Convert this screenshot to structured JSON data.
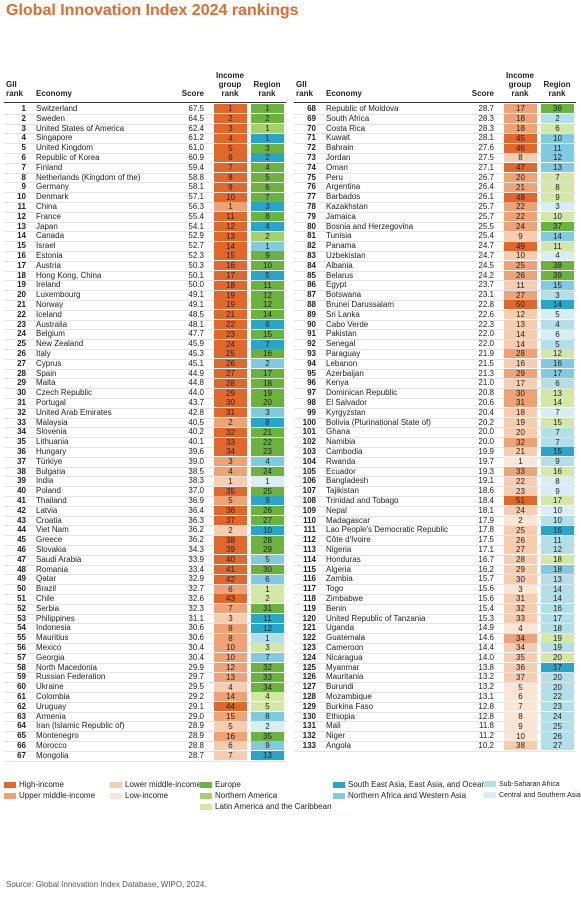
{
  "title": "Global Innovation Index 2024 rankings",
  "headers": [
    "GII rank",
    "Economy",
    "Score",
    "Income group rank",
    "Region rank"
  ],
  "income_groups": [
    {
      "name": "High-income",
      "color": "#e2672b"
    },
    {
      "name": "Upper middle-income",
      "color": "#eea275"
    },
    {
      "name": "Lower middle-income",
      "color": "#f7cdb0"
    },
    {
      "name": "Low-income",
      "color": "#fbe5d5"
    }
  ],
  "regions": [
    {
      "name": "Europe",
      "color": "#6bb23f"
    },
    {
      "name": "Northern America",
      "color": "#a6d06b"
    },
    {
      "name": "Latin America and the Caribbean",
      "color": "#d3e7a6"
    },
    {
      "name": "South East Asia, East Asia, and Oceania",
      "color": "#2aa5ca"
    },
    {
      "name": "Northern Africa and Western Asia",
      "color": "#80cbe0"
    },
    {
      "name": "Sub-Saharan Africa",
      "color": "#b5dfe8"
    },
    {
      "name": "Central and Southern Asia",
      "color": "#d8eef4"
    }
  ],
  "rows": [
    [
      1,
      "Switzerland",
      "67.5",
      1,
      1,
      "High-income",
      "Europe"
    ],
    [
      2,
      "Sweden",
      "64.5",
      2,
      2,
      "High-income",
      "Europe"
    ],
    [
      3,
      "United States of America",
      "62.4",
      3,
      1,
      "High-income",
      "Northern America"
    ],
    [
      4,
      "Singapore",
      "61.2",
      4,
      1,
      "High-income",
      "South East Asia, East Asia, and Oceania"
    ],
    [
      5,
      "United Kingdom",
      "61.0",
      5,
      3,
      "High-income",
      "Europe"
    ],
    [
      6,
      "Republic of Korea",
      "60.9",
      6,
      2,
      "High-income",
      "South East Asia, East Asia, and Oceania"
    ],
    [
      7,
      "Finland",
      "59.4",
      7,
      4,
      "High-income",
      "Europe"
    ],
    [
      8,
      "Netherlands (Kingdom of the)",
      "58.8",
      8,
      5,
      "High-income",
      "Europe"
    ],
    [
      9,
      "Germany",
      "58.1",
      9,
      6,
      "High-income",
      "Europe"
    ],
    [
      10,
      "Denmark",
      "57.1",
      10,
      7,
      "High-income",
      "Europe"
    ],
    [
      11,
      "China",
      "56.3",
      1,
      3,
      "Upper middle-income",
      "South East Asia, East Asia, and Oceania"
    ],
    [
      12,
      "France",
      "55.4",
      11,
      8,
      "High-income",
      "Europe"
    ],
    [
      13,
      "Japan",
      "54.1",
      12,
      4,
      "High-income",
      "South East Asia, East Asia, and Oceania"
    ],
    [
      14,
      "Canada",
      "52.9",
      13,
      2,
      "High-income",
      "Northern America"
    ],
    [
      15,
      "Israel",
      "52.7",
      14,
      1,
      "High-income",
      "Northern Africa and Western Asia"
    ],
    [
      16,
      "Estonia",
      "52.3",
      15,
      9,
      "High-income",
      "Europe"
    ],
    [
      17,
      "Austria",
      "50.3",
      16,
      10,
      "High-income",
      "Europe"
    ],
    [
      18,
      "Hong Kong, China",
      "50.1",
      17,
      5,
      "High-income",
      "South East Asia, East Asia, and Oceania"
    ],
    [
      19,
      "Ireland",
      "50.0",
      18,
      11,
      "High-income",
      "Europe"
    ],
    [
      20,
      "Luxembourg",
      "49.1",
      19,
      12,
      "High-income",
      "Europe"
    ],
    [
      21,
      "Norway",
      "49.1",
      19,
      12,
      "High-income",
      "Europe"
    ],
    [
      22,
      "Iceland",
      "48.5",
      21,
      14,
      "High-income",
      "Europe"
    ],
    [
      23,
      "Australia",
      "48.1",
      22,
      6,
      "High-income",
      "South East Asia, East Asia, and Oceania"
    ],
    [
      24,
      "Belgium",
      "47.7",
      23,
      15,
      "High-income",
      "Europe"
    ],
    [
      25,
      "New Zealand",
      "45.9",
      24,
      7,
      "High-income",
      "South East Asia, East Asia, and Oceania"
    ],
    [
      26,
      "Italy",
      "45.3",
      25,
      16,
      "High-income",
      "Europe"
    ],
    [
      27,
      "Cyprus",
      "45.1",
      26,
      2,
      "High-income",
      "Northern Africa and Western Asia"
    ],
    [
      28,
      "Spain",
      "44.9",
      27,
      17,
      "High-income",
      "Europe"
    ],
    [
      29,
      "Malta",
      "44.8",
      28,
      18,
      "High-income",
      "Europe"
    ],
    [
      30,
      "Czech Republic",
      "44.0",
      29,
      19,
      "High-income",
      "Europe"
    ],
    [
      31,
      "Portugal",
      "43.7",
      30,
      20,
      "High-income",
      "Europe"
    ],
    [
      32,
      "United Arab Emirates",
      "42.8",
      31,
      3,
      "High-income",
      "Northern Africa and Western Asia"
    ],
    [
      33,
      "Malaysia",
      "40.5",
      2,
      8,
      "Upper middle-income",
      "South East Asia, East Asia, and Oceania"
    ],
    [
      34,
      "Slovenia",
      "40.2",
      32,
      21,
      "High-income",
      "Europe"
    ],
    [
      35,
      "Lithuania",
      "40.1",
      33,
      22,
      "High-income",
      "Europe"
    ],
    [
      36,
      "Hungary",
      "39.6",
      34,
      23,
      "High-income",
      "Europe"
    ],
    [
      37,
      "Türkiye",
      "39.0",
      3,
      4,
      "Upper middle-income",
      "Northern Africa and Western Asia"
    ],
    [
      38,
      "Bulgaria",
      "38.5",
      4,
      24,
      "Upper middle-income",
      "Europe"
    ],
    [
      39,
      "India",
      "38.3",
      1,
      1,
      "Lower middle-income",
      "Central and Southern Asia"
    ],
    [
      40,
      "Poland",
      "37.0",
      35,
      25,
      "High-income",
      "Europe"
    ],
    [
      41,
      "Thailand",
      "36.9",
      5,
      9,
      "Upper middle-income",
      "South East Asia, East Asia, and Oceania"
    ],
    [
      42,
      "Latvia",
      "36.4",
      36,
      26,
      "High-income",
      "Europe"
    ],
    [
      43,
      "Croatia",
      "36.3",
      37,
      27,
      "High-income",
      "Europe"
    ],
    [
      44,
      "Viet Nam",
      "36.2",
      2,
      10,
      "Lower middle-income",
      "South East Asia, East Asia, and Oceania"
    ],
    [
      45,
      "Greece",
      "36.2",
      38,
      28,
      "High-income",
      "Europe"
    ],
    [
      46,
      "Slovakia",
      "34.3",
      39,
      29,
      "High-income",
      "Europe"
    ],
    [
      47,
      "Saudi Arabia",
      "33.9",
      40,
      5,
      "High-income",
      "Northern Africa and Western Asia"
    ],
    [
      48,
      "Romania",
      "33.4",
      41,
      30,
      "High-income",
      "Europe"
    ],
    [
      49,
      "Qatar",
      "32.9",
      42,
      6,
      "High-income",
      "Northern Africa and Western Asia"
    ],
    [
      50,
      "Brazil",
      "32.7",
      6,
      1,
      "Upper middle-income",
      "Latin America and the Caribbean"
    ],
    [
      51,
      "Chile",
      "32.6",
      43,
      2,
      "High-income",
      "Latin America and the Caribbean"
    ],
    [
      52,
      "Serbia",
      "32.3",
      7,
      31,
      "Upper middle-income",
      "Europe"
    ],
    [
      53,
      "Philippines",
      "31.1",
      3,
      11,
      "Lower middle-income",
      "South East Asia, East Asia, and Oceania"
    ],
    [
      54,
      "Indonesia",
      "30.6",
      8,
      12,
      "Upper middle-income",
      "South East Asia, East Asia, and Oceania"
    ],
    [
      55,
      "Mauritius",
      "30.6",
      8,
      1,
      "Upper middle-income",
      "Sub-Saharan Africa"
    ],
    [
      56,
      "Mexico",
      "30.4",
      10,
      3,
      "Upper middle-income",
      "Latin America and the Caribbean"
    ],
    [
      57,
      "Georgia",
      "30.4",
      10,
      7,
      "Upper middle-income",
      "Northern Africa and Western Asia"
    ],
    [
      58,
      "North Macedonia",
      "29.9",
      12,
      32,
      "Upper middle-income",
      "Europe"
    ],
    [
      59,
      "Russian Federation",
      "29.7",
      13,
      33,
      "Upper middle-income",
      "Europe"
    ],
    [
      60,
      "Ukraine",
      "29.5",
      4,
      34,
      "Lower middle-income",
      "Europe"
    ],
    [
      61,
      "Colombia",
      "29.2",
      14,
      4,
      "Upper middle-income",
      "Latin America and the Caribbean"
    ],
    [
      62,
      "Uruguay",
      "29.1",
      44,
      5,
      "High-income",
      "Latin America and the Caribbean"
    ],
    [
      63,
      "Armenia",
      "29.0",
      15,
      8,
      "Upper middle-income",
      "Northern Africa and Western Asia"
    ],
    [
      64,
      "Iran (Islamic Republic of)",
      "28.9",
      5,
      2,
      "Lower middle-income",
      "Central and Southern Asia"
    ],
    [
      65,
      "Montenegro",
      "28.9",
      16,
      35,
      "Upper middle-income",
      "Europe"
    ],
    [
      66,
      "Morocco",
      "28.8",
      6,
      9,
      "Lower middle-income",
      "Northern Africa and Western Asia"
    ],
    [
      67,
      "Mongolia",
      "28.7",
      7,
      13,
      "Lower middle-income",
      "South East Asia, East Asia, and Oceania"
    ],
    [
      68,
      "Republic of Moldova",
      "28.7",
      17,
      36,
      "Upper middle-income",
      "Europe"
    ],
    [
      69,
      "South Africa",
      "28.3",
      18,
      2,
      "Upper middle-income",
      "Sub-Saharan Africa"
    ],
    [
      70,
      "Costa Rica",
      "28.3",
      18,
      6,
      "Upper middle-income",
      "Latin America and the Caribbean"
    ],
    [
      71,
      "Kuwait",
      "28.1",
      45,
      10,
      "High-income",
      "Northern Africa and Western Asia"
    ],
    [
      72,
      "Bahrain",
      "27.6",
      46,
      11,
      "High-income",
      "Northern Africa and Western Asia"
    ],
    [
      73,
      "Jordan",
      "27.5",
      8,
      12,
      "Lower middle-income",
      "Northern Africa and Western Asia"
    ],
    [
      74,
      "Oman",
      "27.1",
      47,
      13,
      "High-income",
      "Northern Africa and Western Asia"
    ],
    [
      75,
      "Peru",
      "26.7",
      20,
      7,
      "Upper middle-income",
      "Latin America and the Caribbean"
    ],
    [
      76,
      "Argentina",
      "26.4",
      21,
      8,
      "Upper middle-income",
      "Latin America and the Caribbean"
    ],
    [
      77,
      "Barbados",
      "26.1",
      48,
      9,
      "High-income",
      "Latin America and the Caribbean"
    ],
    [
      78,
      "Kazakhstan",
      "25.7",
      22,
      3,
      "Upper middle-income",
      "Central and Southern Asia"
    ],
    [
      79,
      "Jamaica",
      "25.7",
      22,
      10,
      "Upper middle-income",
      "Latin America and the Caribbean"
    ],
    [
      80,
      "Bosnia and Herzegovina",
      "25.5",
      24,
      37,
      "Upper middle-income",
      "Europe"
    ],
    [
      81,
      "Tunisia",
      "25.4",
      9,
      14,
      "Lower middle-income",
      "Northern Africa and Western Asia"
    ],
    [
      82,
      "Panama",
      "24.7",
      49,
      11,
      "High-income",
      "Latin America and the Caribbean"
    ],
    [
      83,
      "Uzbekistan",
      "24.7",
      10,
      4,
      "Lower middle-income",
      "Central and Southern Asia"
    ],
    [
      84,
      "Albania",
      "24.5",
      25,
      38,
      "Upper middle-income",
      "Europe"
    ],
    [
      85,
      "Belarus",
      "24.2",
      26,
      39,
      "Upper middle-income",
      "Europe"
    ],
    [
      86,
      "Egypt",
      "23.7",
      11,
      15,
      "Lower middle-income",
      "Northern Africa and Western Asia"
    ],
    [
      87,
      "Botswana",
      "23.1",
      27,
      3,
      "Upper middle-income",
      "Sub-Saharan Africa"
    ],
    [
      88,
      "Brunei Darussalam",
      "22.8",
      50,
      14,
      "High-income",
      "South East Asia, East Asia, and Oceania"
    ],
    [
      89,
      "Sri Lanka",
      "22.6",
      12,
      5,
      "Lower middle-income",
      "Central and Southern Asia"
    ],
    [
      90,
      "Cabo Verde",
      "22.3",
      13,
      4,
      "Lower middle-income",
      "Sub-Saharan Africa"
    ],
    [
      91,
      "Pakistan",
      "22.0",
      14,
      6,
      "Lower middle-income",
      "Central and Southern Asia"
    ],
    [
      92,
      "Senegal",
      "22.0",
      14,
      5,
      "Lower middle-income",
      "Sub-Saharan Africa"
    ],
    [
      93,
      "Paraguay",
      "21.9",
      28,
      12,
      "Upper middle-income",
      "Latin America and the Caribbean"
    ],
    [
      94,
      "Lebanon",
      "21.5",
      16,
      16,
      "Lower middle-income",
      "Northern Africa and Western Asia"
    ],
    [
      95,
      "Azerbaijan",
      "21.3",
      29,
      17,
      "Upper middle-income",
      "Northern Africa and Western Asia"
    ],
    [
      96,
      "Kenya",
      "21.0",
      17,
      6,
      "Lower middle-income",
      "Sub-Saharan Africa"
    ],
    [
      97,
      "Dominican Republic",
      "20.8",
      30,
      13,
      "Upper middle-income",
      "Latin America and the Caribbean"
    ],
    [
      98,
      "El Salvador",
      "20.6",
      31,
      14,
      "Upper middle-income",
      "Latin America and the Caribbean"
    ],
    [
      99,
      "Kyrgyzstan",
      "20.4",
      18,
      7,
      "Lower middle-income",
      "Central and Southern Asia"
    ],
    [
      100,
      "Bolivia (Plurinational State of)",
      "20.2",
      19,
      15,
      "Lower middle-income",
      "Latin America and the Caribbean"
    ],
    [
      101,
      "Ghana",
      "20.0",
      20,
      7,
      "Lower middle-income",
      "Sub-Saharan Africa"
    ],
    [
      102,
      "Namibia",
      "20.0",
      32,
      7,
      "Upper middle-income",
      "Sub-Saharan Africa"
    ],
    [
      103,
      "Cambodia",
      "19.9",
      21,
      15,
      "Lower middle-income",
      "South East Asia, East Asia, and Oceania"
    ],
    [
      104,
      "Rwanda",
      "19.7",
      1,
      9,
      "Low-income",
      "Sub-Saharan Africa"
    ],
    [
      105,
      "Ecuador",
      "19.3",
      33,
      16,
      "Upper middle-income",
      "Latin America and the Caribbean"
    ],
    [
      106,
      "Bangladesh",
      "19.1",
      22,
      8,
      "Lower middle-income",
      "Central and Southern Asia"
    ],
    [
      107,
      "Tajikistan",
      "18.6",
      23,
      9,
      "Lower middle-income",
      "Central and Southern Asia"
    ],
    [
      108,
      "Trinidad and Tobago",
      "18.4",
      51,
      17,
      "High-income",
      "Latin America and the Caribbean"
    ],
    [
      109,
      "Nepal",
      "18.1",
      24,
      10,
      "Lower middle-income",
      "Central and Southern Asia"
    ],
    [
      110,
      "Madagascar",
      "17.9",
      2,
      10,
      "Low-income",
      "Sub-Saharan Africa"
    ],
    [
      111,
      "Lao People's Democratic Republic",
      "17.8",
      25,
      16,
      "Lower middle-income",
      "South East Asia, East Asia, and Oceania"
    ],
    [
      112,
      "Côte d'Ivoire",
      "17.5",
      26,
      11,
      "Lower middle-income",
      "Sub-Saharan Africa"
    ],
    [
      113,
      "Nigeria",
      "17.1",
      27,
      12,
      "Lower middle-income",
      "Sub-Saharan Africa"
    ],
    [
      114,
      "Honduras",
      "16.7",
      28,
      18,
      "Lower middle-income",
      "Latin America and the Caribbean"
    ],
    [
      115,
      "Algeria",
      "16.2",
      29,
      18,
      "Lower middle-income",
      "Northern Africa and Western Asia"
    ],
    [
      116,
      "Zambia",
      "15.7",
      30,
      13,
      "Lower middle-income",
      "Sub-Saharan Africa"
    ],
    [
      117,
      "Togo",
      "15.6",
      3,
      14,
      "Low-income",
      "Sub-Saharan Africa"
    ],
    [
      118,
      "Zimbabwe",
      "15.6",
      31,
      14,
      "Lower middle-income",
      "Sub-Saharan Africa"
    ],
    [
      119,
      "Benin",
      "15.4",
      32,
      16,
      "Lower middle-income",
      "Sub-Saharan Africa"
    ],
    [
      120,
      "United Republic of Tanzania",
      "15.3",
      33,
      17,
      "Lower middle-income",
      "Sub-Saharan Africa"
    ],
    [
      121,
      "Uganda",
      "14.9",
      4,
      18,
      "Low-income",
      "Sub-Saharan Africa"
    ],
    [
      122,
      "Guatemala",
      "14.6",
      34,
      19,
      "Upper middle-income",
      "Latin America and the Caribbean"
    ],
    [
      123,
      "Cameroon",
      "14.4",
      34,
      19,
      "Lower middle-income",
      "Sub-Saharan Africa"
    ],
    [
      124,
      "Nicaragua",
      "14.0",
      35,
      20,
      "Lower middle-income",
      "Latin America and the Caribbean"
    ],
    [
      125,
      "Myanmar",
      "13.8",
      36,
      17,
      "Lower middle-income",
      "South East Asia, East Asia, and Oceania"
    ],
    [
      126,
      "Mauritania",
      "13.2",
      37,
      20,
      "Lower middle-income",
      "Sub-Saharan Africa"
    ],
    [
      127,
      "Burundi",
      "13.2",
      5,
      20,
      "Low-income",
      "Sub-Saharan Africa"
    ],
    [
      128,
      "Mozambique",
      "13.1",
      6,
      22,
      "Low-income",
      "Sub-Saharan Africa"
    ],
    [
      129,
      "Burkina Faso",
      "12.8",
      7,
      23,
      "Low-income",
      "Sub-Saharan Africa"
    ],
    [
      130,
      "Ethiopia",
      "12.8",
      8,
      24,
      "Low-income",
      "Sub-Saharan Africa"
    ],
    [
      131,
      "Mali",
      "11.8",
      9,
      25,
      "Low-income",
      "Sub-Saharan Africa"
    ],
    [
      132,
      "Niger",
      "11.2",
      10,
      26,
      "Low-income",
      "Sub-Saharan Africa"
    ],
    [
      133,
      "Angola",
      "10.2",
      38,
      27,
      "Lower middle-income",
      "Sub-Saharan Africa"
    ]
  ],
  "source": "Source: Global Innovation Index Database, WIPO, 2024."
}
